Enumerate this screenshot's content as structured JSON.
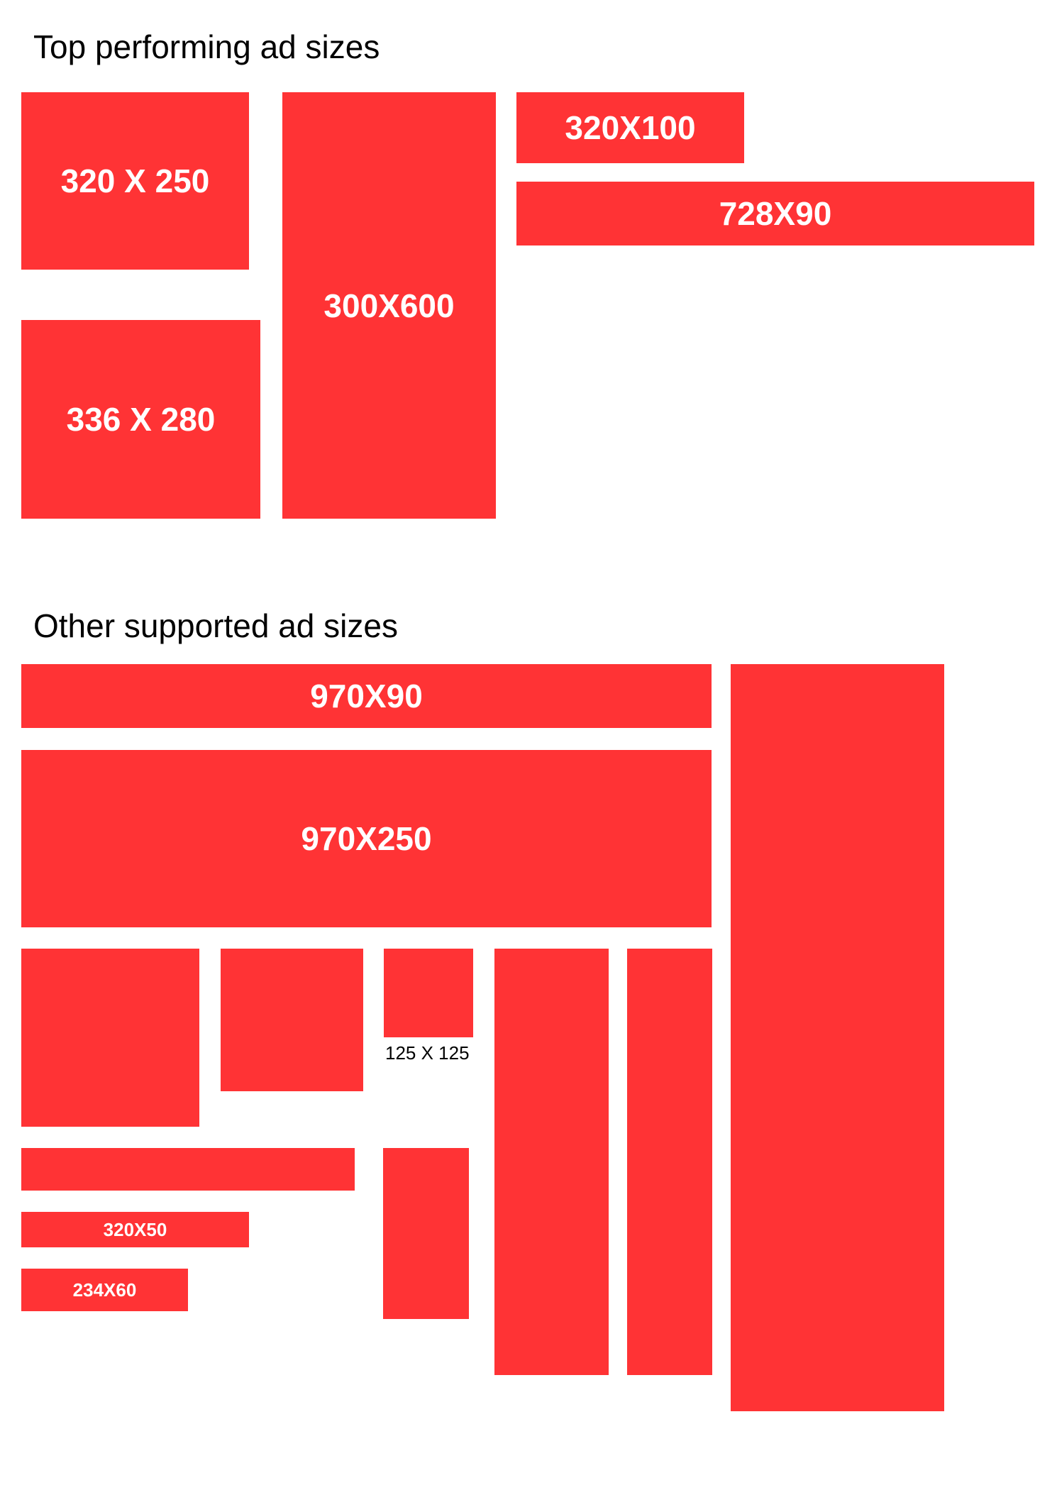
{
  "colors": {
    "ad_fill": "#ff3335",
    "ad_text": "#ffffff",
    "heading_text": "#000000"
  },
  "top_section": {
    "title": "Top performing ad sizes",
    "ads": {
      "a320x250": "320 X 250",
      "a336x280": "336 X 280",
      "a300x600": "300X600",
      "a320x100": "320X100",
      "a728x90": "728X90"
    }
  },
  "other_section": {
    "title": "Other supported ad sizes",
    "ads": {
      "a970x90": "970X90",
      "a970x250": "970X250",
      "a125x125_caption": "125 X 125",
      "a320x50": "320X50",
      "a234x60": "234X60"
    }
  }
}
